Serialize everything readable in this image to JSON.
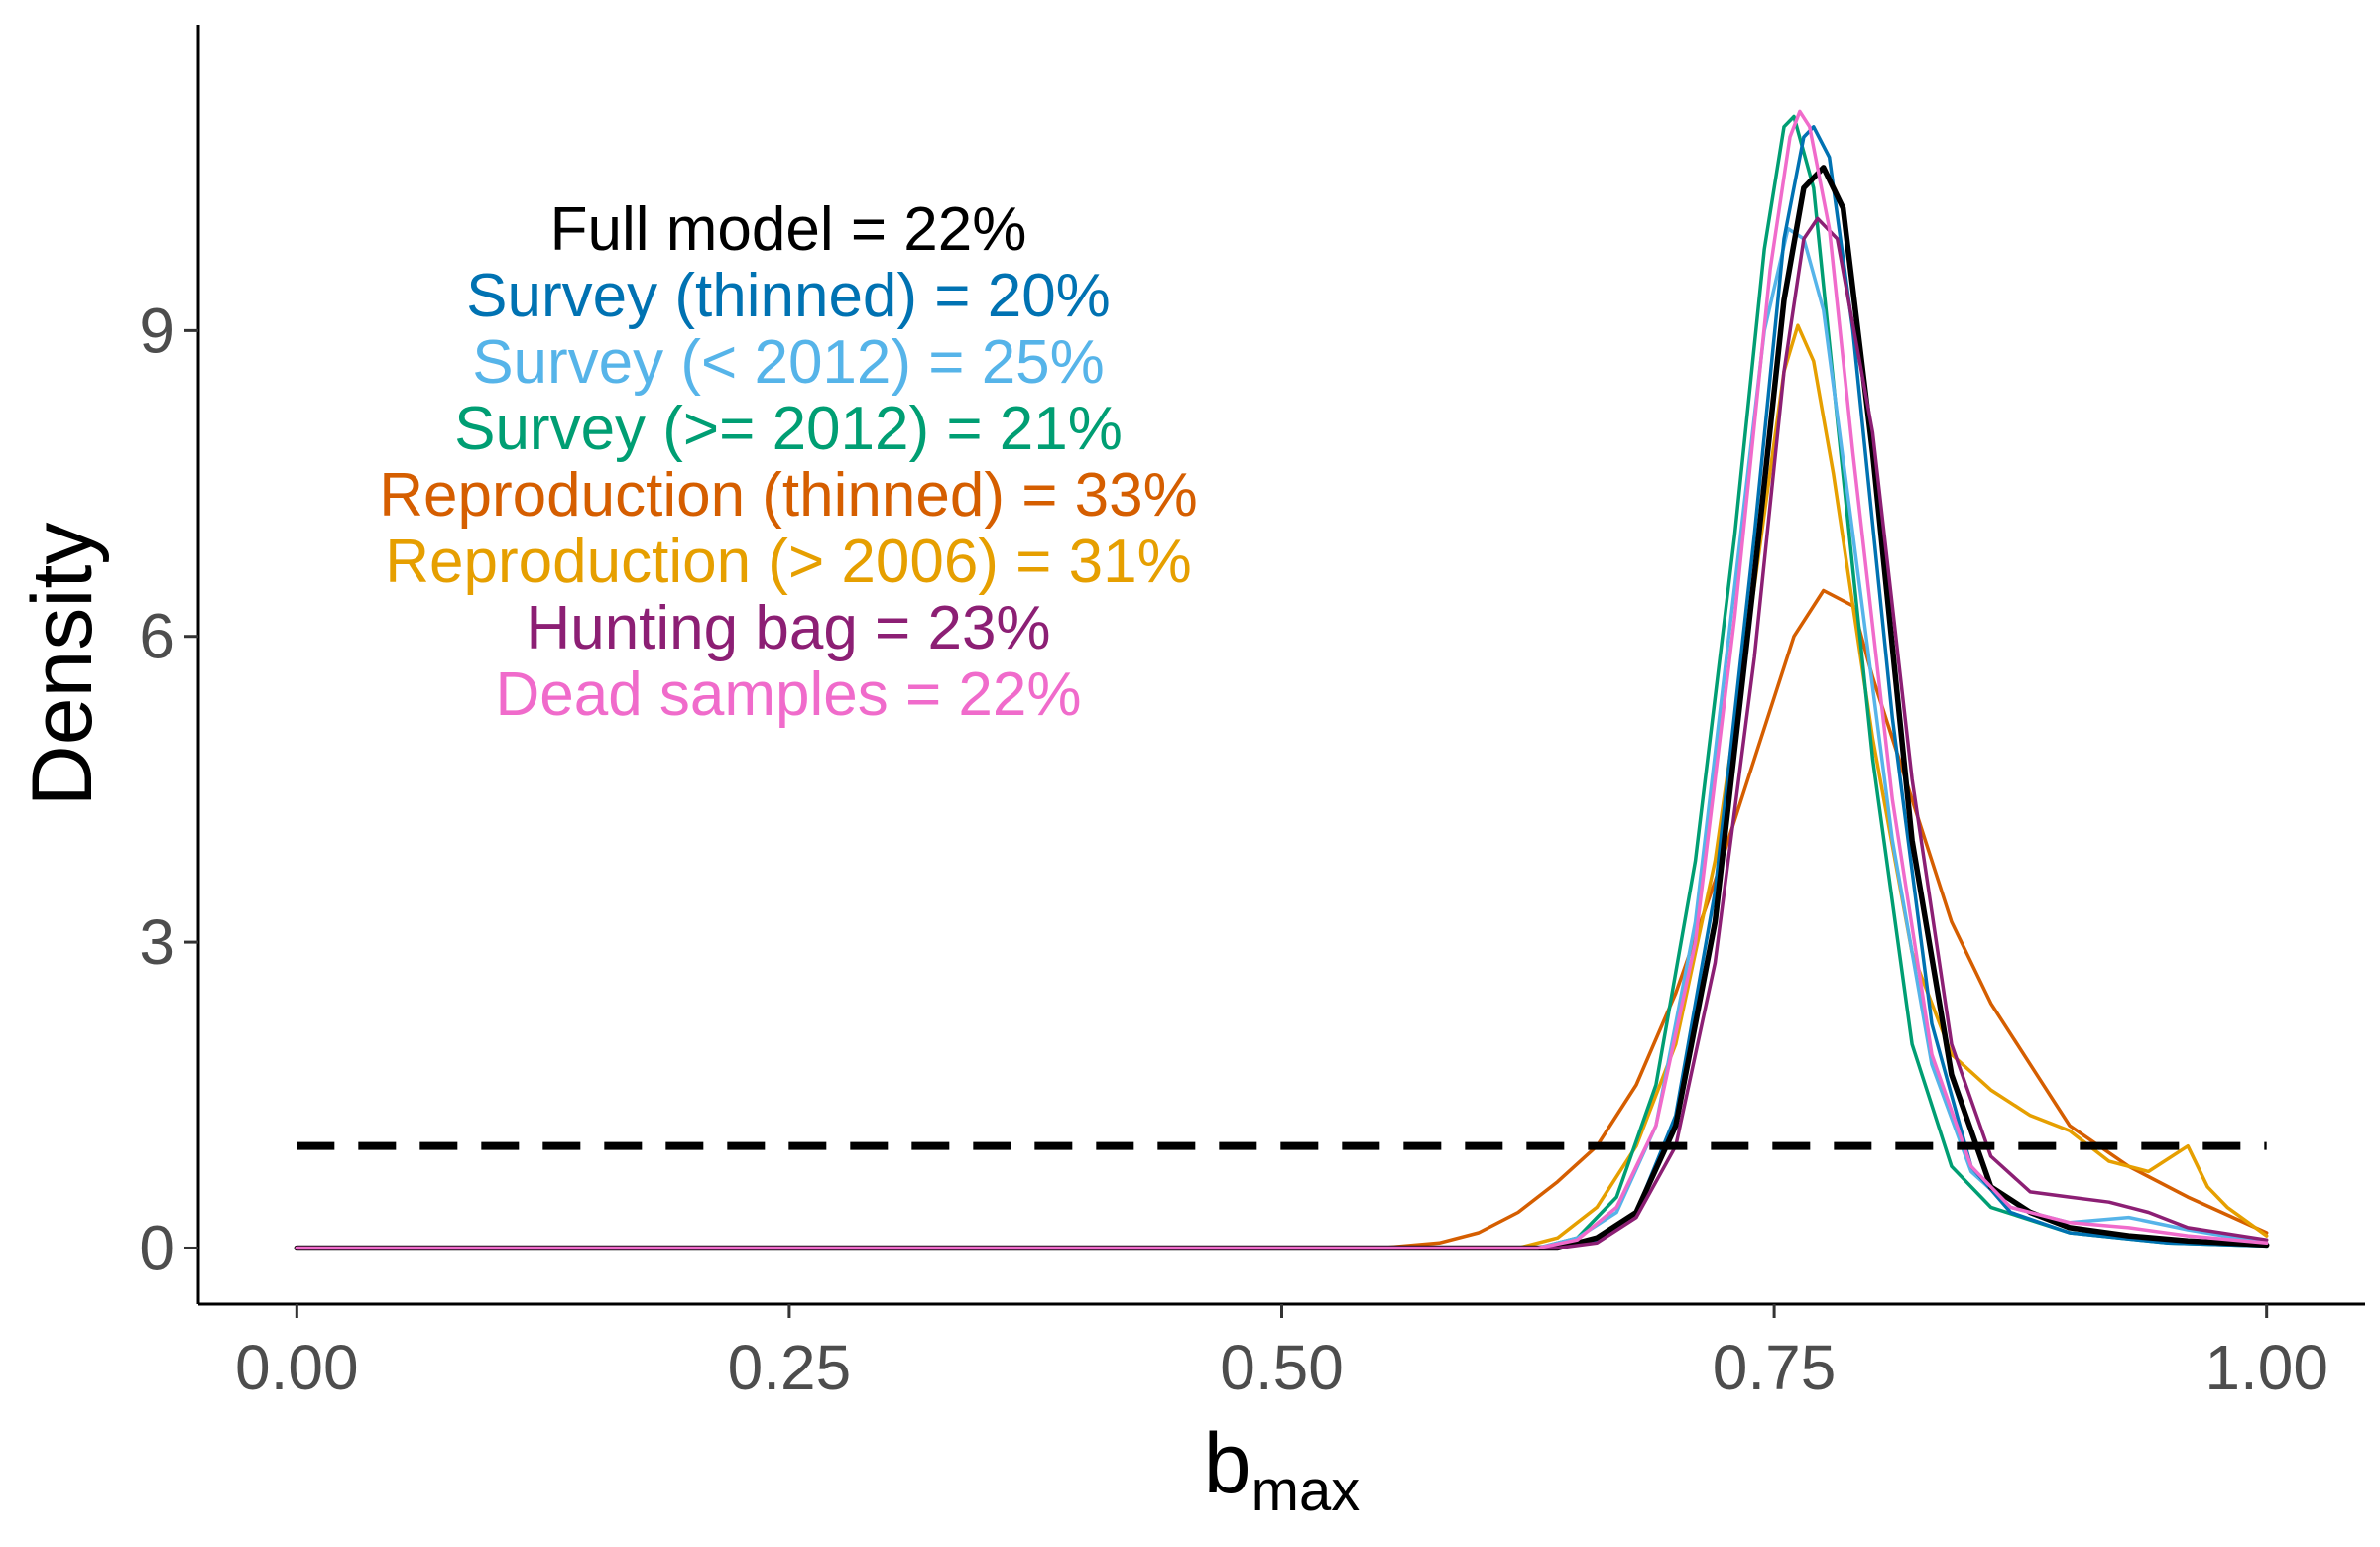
{
  "chart_data": {
    "type": "line",
    "title": "",
    "xlabel": "b",
    "xlabel_subscript": "max",
    "ylabel": "Density",
    "xlim": [
      -0.05,
      1.05
    ],
    "ylim": [
      -0.55,
      12.0
    ],
    "x_ticks": [
      0.0,
      0.25,
      0.5,
      0.75,
      1.0
    ],
    "x_tick_labels": [
      "0.00",
      "0.25",
      "0.50",
      "0.75",
      "1.00"
    ],
    "y_ticks": [
      0,
      3,
      6,
      9
    ],
    "y_tick_labels": [
      "0",
      "3",
      "6",
      "9"
    ],
    "grid": false,
    "legend": "none",
    "reference_line": {
      "y": 1,
      "x_range": [
        0,
        1
      ],
      "style": "dashed",
      "color": "#000000"
    },
    "annotations": [
      {
        "text": "Full model = 22%",
        "color": "#000000"
      },
      {
        "text": "Survey (thinned) = 20%",
        "color": "#0072B2"
      },
      {
        "text": "Survey (< 2012) = 25%",
        "color": "#56B4E9"
      },
      {
        "text": "Survey (>= 2012) = 21%",
        "color": "#009E73"
      },
      {
        "text": "Reproduction (thinned) = 33%",
        "color": "#D55E00"
      },
      {
        "text": "Reproduction (> 2006) = 31%",
        "color": "#E69F00"
      },
      {
        "text": "Hunting bag = 23%",
        "color": "#8C1F74"
      },
      {
        "text": "Dead samples = 22%",
        "color": "#F06BCB"
      }
    ],
    "series": [
      {
        "color": "#D55E00",
        "stroke_width": 3.5,
        "points": [
          [
            0,
            0
          ],
          [
            0.55,
            0
          ],
          [
            0.58,
            0.05
          ],
          [
            0.6,
            0.15
          ],
          [
            0.62,
            0.35
          ],
          [
            0.64,
            0.65
          ],
          [
            0.66,
            1.0
          ],
          [
            0.68,
            1.6
          ],
          [
            0.7,
            2.5
          ],
          [
            0.72,
            3.6
          ],
          [
            0.74,
            4.8
          ],
          [
            0.76,
            6.0
          ],
          [
            0.775,
            6.45
          ],
          [
            0.79,
            6.3
          ],
          [
            0.8,
            5.6
          ],
          [
            0.82,
            4.4
          ],
          [
            0.84,
            3.2
          ],
          [
            0.86,
            2.4
          ],
          [
            0.88,
            1.8
          ],
          [
            0.9,
            1.2
          ],
          [
            0.93,
            0.8
          ],
          [
            0.96,
            0.5
          ],
          [
            1.0,
            0.15
          ]
        ]
      },
      {
        "color": "#E69F00",
        "stroke_width": 3.5,
        "points": [
          [
            0,
            0
          ],
          [
            0.62,
            0
          ],
          [
            0.64,
            0.1
          ],
          [
            0.66,
            0.4
          ],
          [
            0.68,
            1.0
          ],
          [
            0.7,
            2.0
          ],
          [
            0.72,
            3.8
          ],
          [
            0.74,
            6.5
          ],
          [
            0.755,
            8.6
          ],
          [
            0.762,
            9.05
          ],
          [
            0.77,
            8.7
          ],
          [
            0.78,
            7.6
          ],
          [
            0.8,
            5.0
          ],
          [
            0.82,
            2.9
          ],
          [
            0.84,
            1.9
          ],
          [
            0.86,
            1.55
          ],
          [
            0.88,
            1.3
          ],
          [
            0.9,
            1.15
          ],
          [
            0.92,
            0.85
          ],
          [
            0.94,
            0.75
          ],
          [
            0.96,
            1.0
          ],
          [
            0.97,
            0.6
          ],
          [
            0.98,
            0.4
          ],
          [
            1.0,
            0.12
          ]
        ]
      },
      {
        "color": "#009E73",
        "stroke_width": 3.5,
        "points": [
          [
            0,
            0
          ],
          [
            0.63,
            0
          ],
          [
            0.65,
            0.1
          ],
          [
            0.67,
            0.5
          ],
          [
            0.69,
            1.6
          ],
          [
            0.71,
            3.8
          ],
          [
            0.73,
            7.0
          ],
          [
            0.745,
            9.8
          ],
          [
            0.755,
            11.0
          ],
          [
            0.76,
            11.1
          ],
          [
            0.77,
            10.4
          ],
          [
            0.78,
            8.5
          ],
          [
            0.8,
            4.8
          ],
          [
            0.82,
            2.0
          ],
          [
            0.84,
            0.8
          ],
          [
            0.86,
            0.4
          ],
          [
            0.9,
            0.15
          ],
          [
            0.95,
            0.05
          ],
          [
            1.0,
            0.02
          ]
        ]
      },
      {
        "color": "#56B4E9",
        "stroke_width": 3.5,
        "points": [
          [
            0,
            0
          ],
          [
            0.63,
            0
          ],
          [
            0.65,
            0.1
          ],
          [
            0.67,
            0.35
          ],
          [
            0.69,
            1.2
          ],
          [
            0.71,
            3.2
          ],
          [
            0.73,
            6.5
          ],
          [
            0.745,
            9.0
          ],
          [
            0.757,
            10.0
          ],
          [
            0.765,
            9.9
          ],
          [
            0.775,
            9.2
          ],
          [
            0.79,
            7.0
          ],
          [
            0.81,
            4.0
          ],
          [
            0.83,
            1.8
          ],
          [
            0.85,
            0.75
          ],
          [
            0.87,
            0.4
          ],
          [
            0.9,
            0.25
          ],
          [
            0.93,
            0.3
          ],
          [
            0.96,
            0.18
          ],
          [
            1.0,
            0.05
          ]
        ]
      },
      {
        "color": "#0072B2",
        "stroke_width": 3.5,
        "points": [
          [
            0,
            0
          ],
          [
            0.64,
            0
          ],
          [
            0.66,
            0.08
          ],
          [
            0.68,
            0.35
          ],
          [
            0.7,
            1.3
          ],
          [
            0.72,
            3.5
          ],
          [
            0.74,
            7.0
          ],
          [
            0.755,
            9.9
          ],
          [
            0.765,
            10.9
          ],
          [
            0.77,
            11.0
          ],
          [
            0.778,
            10.7
          ],
          [
            0.79,
            9.0
          ],
          [
            0.81,
            5.2
          ],
          [
            0.83,
            2.2
          ],
          [
            0.85,
            0.8
          ],
          [
            0.87,
            0.35
          ],
          [
            0.9,
            0.15
          ],
          [
            0.95,
            0.05
          ],
          [
            1.0,
            0.02
          ]
        ]
      },
      {
        "color": "#000000",
        "stroke_width": 5.5,
        "points": [
          [
            0,
            0
          ],
          [
            0.64,
            0
          ],
          [
            0.66,
            0.1
          ],
          [
            0.68,
            0.35
          ],
          [
            0.7,
            1.2
          ],
          [
            0.72,
            3.2
          ],
          [
            0.74,
            6.6
          ],
          [
            0.755,
            9.3
          ],
          [
            0.765,
            10.4
          ],
          [
            0.775,
            10.6
          ],
          [
            0.785,
            10.2
          ],
          [
            0.8,
            7.8
          ],
          [
            0.82,
            4.0
          ],
          [
            0.84,
            1.7
          ],
          [
            0.86,
            0.6
          ],
          [
            0.88,
            0.35
          ],
          [
            0.9,
            0.2
          ],
          [
            0.93,
            0.12
          ],
          [
            0.96,
            0.07
          ],
          [
            1.0,
            0.03
          ]
        ]
      },
      {
        "color": "#8C1F74",
        "stroke_width": 3.5,
        "points": [
          [
            0,
            0
          ],
          [
            0.64,
            0
          ],
          [
            0.66,
            0.05
          ],
          [
            0.68,
            0.3
          ],
          [
            0.7,
            1.0
          ],
          [
            0.72,
            2.8
          ],
          [
            0.74,
            5.8
          ],
          [
            0.755,
            8.6
          ],
          [
            0.765,
            9.9
          ],
          [
            0.772,
            10.1
          ],
          [
            0.782,
            9.9
          ],
          [
            0.8,
            8.0
          ],
          [
            0.82,
            4.6
          ],
          [
            0.84,
            2.0
          ],
          [
            0.86,
            0.9
          ],
          [
            0.88,
            0.55
          ],
          [
            0.9,
            0.5
          ],
          [
            0.92,
            0.45
          ],
          [
            0.94,
            0.35
          ],
          [
            0.96,
            0.2
          ],
          [
            1.0,
            0.08
          ]
        ]
      },
      {
        "color": "#F06BCB",
        "stroke_width": 3.5,
        "points": [
          [
            0,
            0
          ],
          [
            0.63,
            0
          ],
          [
            0.65,
            0.08
          ],
          [
            0.67,
            0.4
          ],
          [
            0.69,
            1.2
          ],
          [
            0.71,
            3.0
          ],
          [
            0.73,
            6.2
          ],
          [
            0.748,
            9.6
          ],
          [
            0.758,
            10.9
          ],
          [
            0.763,
            11.15
          ],
          [
            0.768,
            11.0
          ],
          [
            0.778,
            10.0
          ],
          [
            0.79,
            7.8
          ],
          [
            0.81,
            4.4
          ],
          [
            0.83,
            1.9
          ],
          [
            0.85,
            0.8
          ],
          [
            0.87,
            0.4
          ],
          [
            0.9,
            0.25
          ],
          [
            0.93,
            0.2
          ],
          [
            0.96,
            0.12
          ],
          [
            1.0,
            0.05
          ]
        ]
      }
    ]
  }
}
